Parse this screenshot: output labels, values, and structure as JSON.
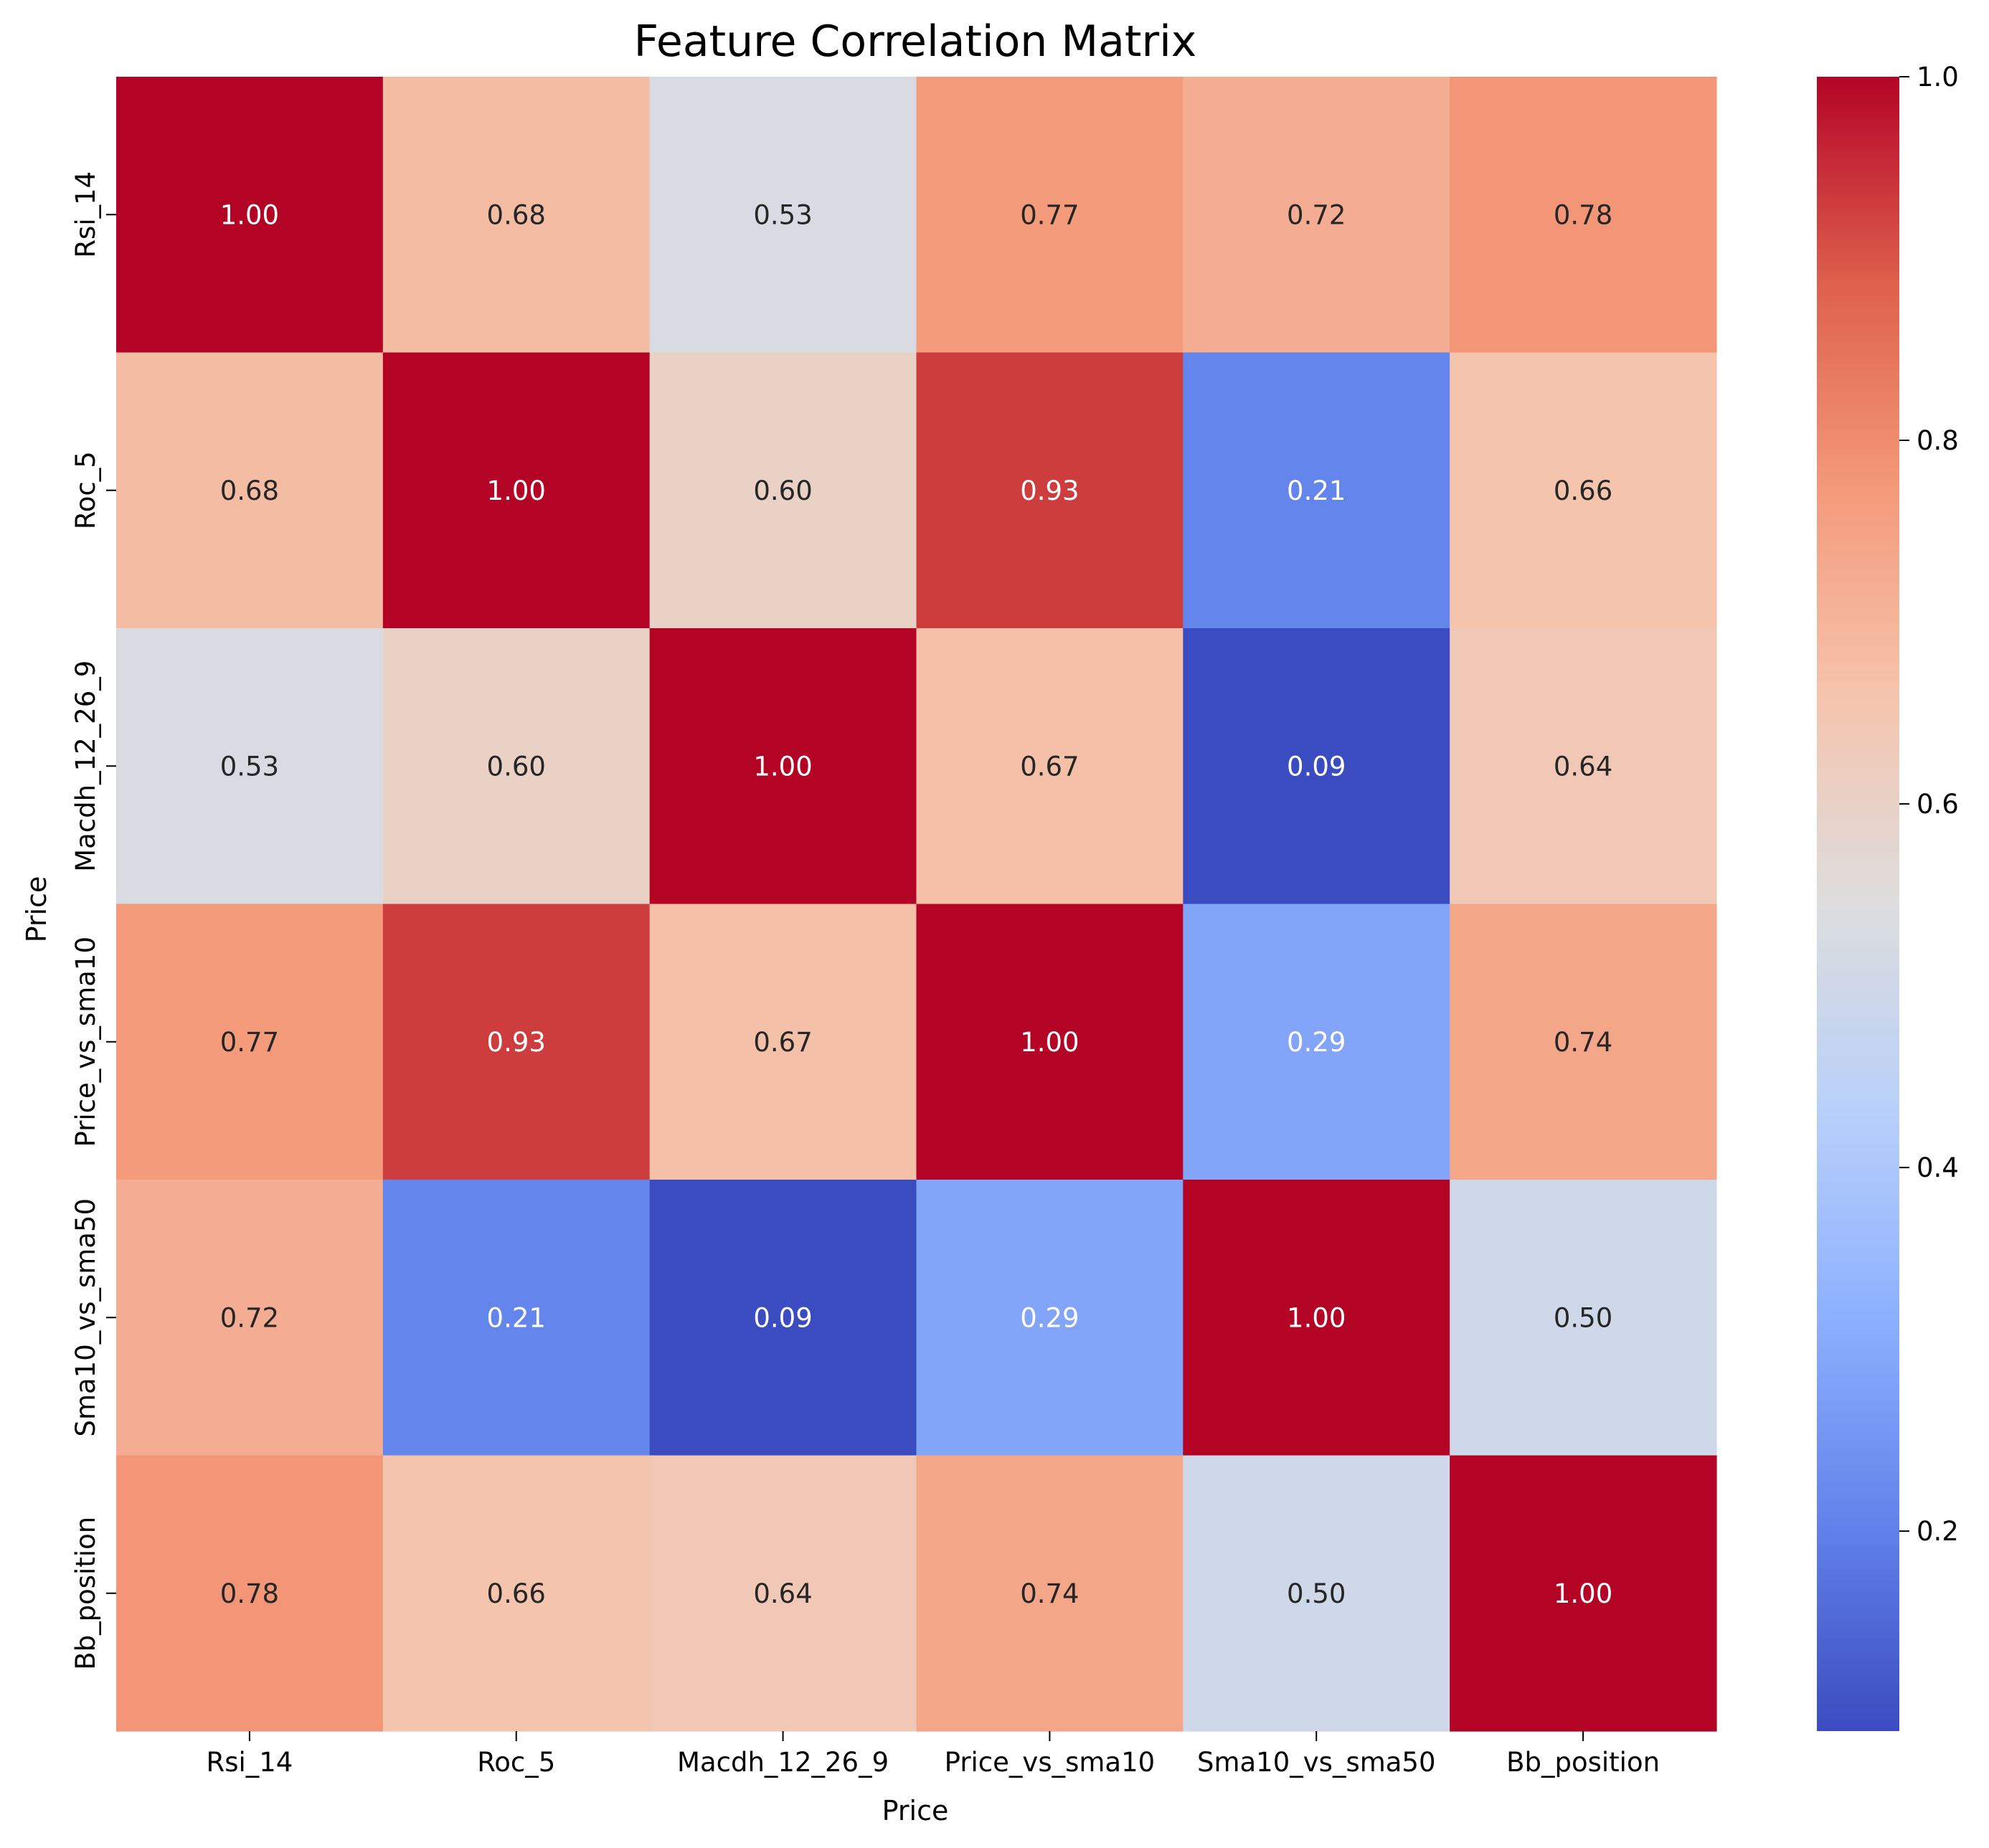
{
  "chart_data": {
    "type": "heatmap",
    "title": "Feature Correlation Matrix",
    "xlabel": "Price",
    "ylabel": "Price",
    "x_categories": [
      "Rsi_14",
      "Roc_5",
      "Macdh_12_26_9",
      "Price_vs_sma10",
      "Sma10_vs_sma50",
      "Bb_position"
    ],
    "y_categories": [
      "Rsi_14",
      "Roc_5",
      "Macdh_12_26_9",
      "Price_vs_sma10",
      "Sma10_vs_sma50",
      "Bb_position"
    ],
    "values": [
      [
        1.0,
        0.68,
        0.53,
        0.77,
        0.72,
        0.78
      ],
      [
        0.68,
        1.0,
        0.6,
        0.93,
        0.21,
        0.66
      ],
      [
        0.53,
        0.6,
        1.0,
        0.67,
        0.09,
        0.64
      ],
      [
        0.77,
        0.93,
        0.67,
        1.0,
        0.29,
        0.74
      ],
      [
        0.72,
        0.21,
        0.09,
        0.29,
        1.0,
        0.5
      ],
      [
        0.78,
        0.66,
        0.64,
        0.74,
        0.5,
        1.0
      ]
    ],
    "colorbar": {
      "colormap": "coolwarm",
      "min": 0.09,
      "max": 1.0,
      "ticks": [
        0.2,
        0.4,
        0.6,
        0.8,
        1.0
      ],
      "tick_labels": [
        "0.2",
        "0.4",
        "0.6",
        "0.8",
        "1.0"
      ]
    },
    "annotation_format": "0.00",
    "grid": false
  }
}
